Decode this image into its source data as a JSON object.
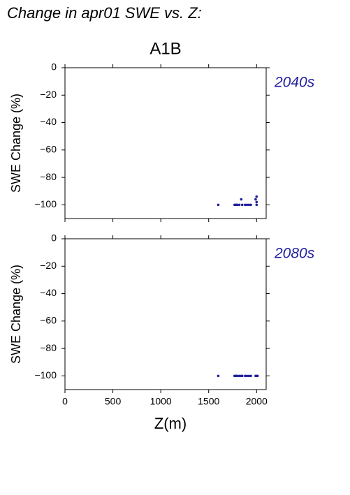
{
  "header": {
    "title": "Change in apr01 SWE vs. Z:",
    "scenario": "A1B"
  },
  "chart_data": [
    {
      "type": "scatter",
      "label": "2040s",
      "ylabel": "SWE Change (%)",
      "color": "#1f1fa0",
      "x": [
        1600,
        1770,
        1780,
        1790,
        1800,
        1820,
        1840,
        1850,
        1880,
        1900,
        1920,
        1940,
        1990,
        2000,
        2000,
        2000
      ],
      "values": [
        -100,
        -100,
        -100,
        -100,
        -100,
        -100,
        -96,
        -100,
        -100,
        -100,
        -100,
        -100,
        -96,
        -94,
        -98,
        -100
      ],
      "xlim": [
        0,
        2100
      ],
      "ylim": [
        -110,
        0
      ],
      "xticks": [
        0,
        500,
        1000,
        1500,
        2000
      ],
      "yticks": [
        0,
        {
          "value": -20,
          "label": "−20"
        },
        {
          "value": -40,
          "label": "−40"
        },
        {
          "value": -60,
          "label": "−60"
        },
        {
          "value": -80,
          "label": "−80"
        },
        {
          "value": -100,
          "label": "−100"
        }
      ]
    },
    {
      "type": "scatter",
      "label": "2080s",
      "ylabel": "SWE Change (%)",
      "xlabel": "Z(m)",
      "color": "#1f1fa0",
      "x": [
        1600,
        1770,
        1780,
        1790,
        1800,
        1820,
        1840,
        1850,
        1880,
        1900,
        1920,
        1940,
        1990,
        2000,
        2010
      ],
      "values": [
        -100,
        -100,
        -100,
        -100,
        -100,
        -100,
        -100,
        -100,
        -100,
        -100,
        -100,
        -100,
        -100,
        -100,
        -100
      ],
      "xlim": [
        0,
        2100
      ],
      "ylim": [
        -110,
        0
      ],
      "xticks": [
        0,
        500,
        1000,
        1500,
        2000
      ],
      "yticks": [
        0,
        {
          "value": -20,
          "label": "−20"
        },
        {
          "value": -40,
          "label": "−40"
        },
        {
          "value": -60,
          "label": "−60"
        },
        {
          "value": -80,
          "label": "−80"
        },
        {
          "value": -100,
          "label": "−100"
        }
      ]
    }
  ]
}
